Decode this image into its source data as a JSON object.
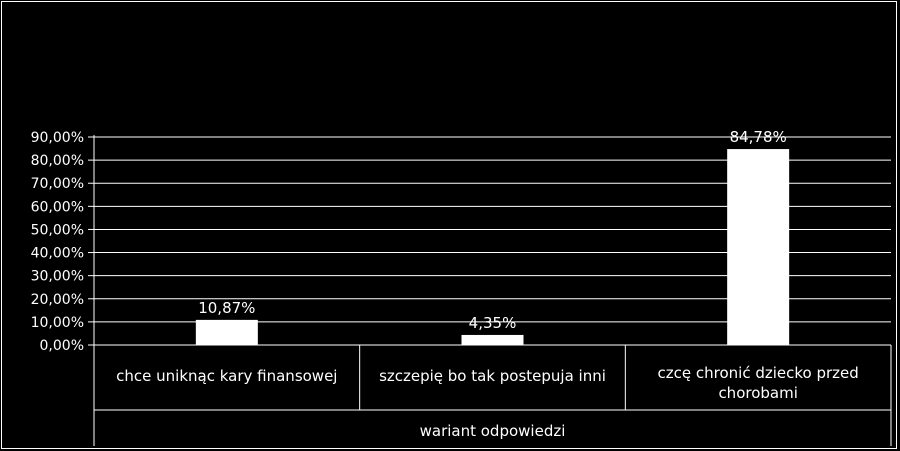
{
  "chart_data": {
    "type": "bar",
    "title": "",
    "xlabel": "wariant odpowiedzi",
    "ylabel": "",
    "categories": [
      [
        "chce uniknąc kary finansowej"
      ],
      [
        "szczepię bo tak postepuja inni"
      ],
      [
        "czcę chronić dziecko przed",
        "chorobami"
      ]
    ],
    "values": [
      10.87,
      4.35,
      84.78
    ],
    "data_labels": [
      "10,87%",
      "4,35%",
      "84,78%"
    ],
    "ylim": [
      0,
      90
    ],
    "yticks": [
      "0,00%",
      "10,00%",
      "20,00%",
      "30,00%",
      "40,00%",
      "50,00%",
      "60,00%",
      "70,00%",
      "80,00%",
      "90,00%"
    ],
    "grid": true,
    "legend": "none",
    "colors": {
      "background": "#000000",
      "bar": "#ffffff",
      "text": "#ffffff",
      "grid": "#ffffff"
    }
  }
}
